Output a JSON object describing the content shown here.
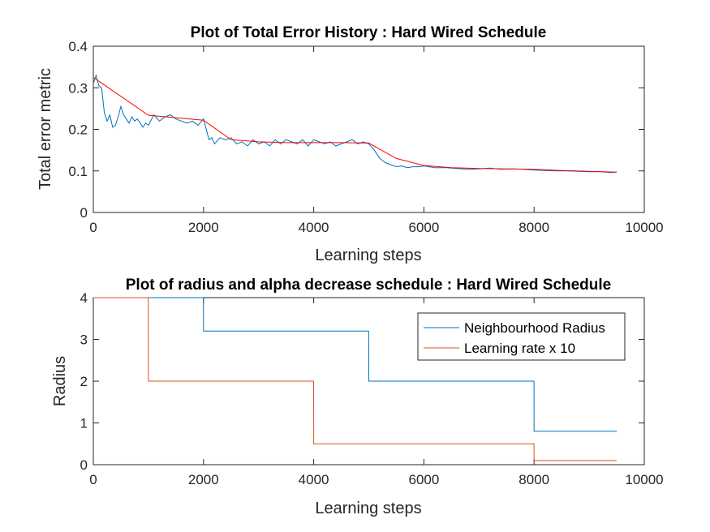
{
  "chart_data": [
    {
      "type": "line",
      "title": "Plot of Total Error History : Hard Wired Schedule",
      "xlabel": "Learning steps",
      "ylabel": "Total error metric",
      "xlim": [
        0,
        10000
      ],
      "ylim": [
        0,
        0.4
      ],
      "xticks": [
        "0",
        "2000",
        "4000",
        "6000",
        "8000",
        "10000"
      ],
      "yticks": [
        "0",
        "0.1",
        "0.2",
        "0.3",
        "0.4"
      ],
      "grid": false,
      "series": [
        {
          "color": "#0072BD",
          "x": [
            0,
            50,
            100,
            150,
            200,
            250,
            300,
            350,
            400,
            450,
            500,
            550,
            600,
            650,
            700,
            750,
            800,
            850,
            900,
            950,
            1000,
            1100,
            1200,
            1300,
            1400,
            1500,
            1600,
            1700,
            1800,
            1900,
            2000,
            2050,
            2100,
            2150,
            2200,
            2300,
            2400,
            2500,
            2600,
            2700,
            2800,
            2900,
            3000,
            3100,
            3200,
            3300,
            3400,
            3500,
            3600,
            3700,
            3800,
            3900,
            4000,
            4100,
            4200,
            4300,
            4400,
            4500,
            4600,
            4700,
            4800,
            4900,
            5000,
            5100,
            5200,
            5300,
            5400,
            5500,
            5600,
            5700,
            5800,
            5900,
            6000,
            6200,
            6400,
            6600,
            6800,
            7000,
            7200,
            7400,
            7600,
            7800,
            8000,
            8200,
            8400,
            8600,
            8800,
            9000,
            9200,
            9400,
            9500
          ],
          "y": [
            0.31,
            0.33,
            0.305,
            0.3,
            0.24,
            0.22,
            0.235,
            0.205,
            0.21,
            0.23,
            0.255,
            0.235,
            0.225,
            0.215,
            0.23,
            0.22,
            0.225,
            0.215,
            0.205,
            0.215,
            0.21,
            0.235,
            0.22,
            0.23,
            0.235,
            0.225,
            0.22,
            0.215,
            0.22,
            0.21,
            0.225,
            0.2,
            0.175,
            0.18,
            0.165,
            0.18,
            0.175,
            0.18,
            0.165,
            0.17,
            0.16,
            0.175,
            0.165,
            0.17,
            0.16,
            0.175,
            0.165,
            0.175,
            0.17,
            0.165,
            0.175,
            0.16,
            0.175,
            0.17,
            0.165,
            0.17,
            0.16,
            0.165,
            0.17,
            0.175,
            0.165,
            0.17,
            0.165,
            0.15,
            0.13,
            0.12,
            0.115,
            0.11,
            0.112,
            0.108,
            0.11,
            0.11,
            0.112,
            0.108,
            0.108,
            0.106,
            0.104,
            0.105,
            0.107,
            0.104,
            0.105,
            0.104,
            0.102,
            0.101,
            0.1,
            0.1,
            0.099,
            0.098,
            0.098,
            0.096,
            0.097
          ]
        },
        {
          "color": "#FF0000",
          "x": [
            0,
            1000,
            2000,
            2500,
            3000,
            3500,
            4000,
            4500,
            5000,
            5500,
            6000,
            6500,
            7000,
            7500,
            8000,
            8500,
            9000,
            9500
          ],
          "y": [
            0.325,
            0.234,
            0.222,
            0.175,
            0.17,
            0.168,
            0.168,
            0.168,
            0.167,
            0.13,
            0.113,
            0.108,
            0.106,
            0.105,
            0.104,
            0.101,
            0.099,
            0.097
          ]
        }
      ]
    },
    {
      "type": "line",
      "title": "Plot of radius and alpha decrease schedule : Hard Wired Schedule",
      "xlabel": "Learning steps",
      "ylabel": "Radius",
      "xlim": [
        0,
        10000
      ],
      "ylim": [
        0,
        4
      ],
      "xticks": [
        "0",
        "2000",
        "4000",
        "6000",
        "8000",
        "10000"
      ],
      "yticks": [
        "0",
        "1",
        "2",
        "3",
        "4"
      ],
      "grid": false,
      "legend_position": "top-right",
      "series": [
        {
          "name": "Neighbourhood Radius",
          "color": "#0072BD",
          "x": [
            0,
            1999,
            2000,
            4999,
            5000,
            7999,
            8000,
            9500
          ],
          "y": [
            4,
            4,
            3.2,
            3.2,
            2,
            2,
            0.8,
            0.8
          ]
        },
        {
          "name": "Learning rate x 10",
          "color": "#D95319",
          "x": [
            0,
            999,
            1000,
            3999,
            4000,
            7999,
            8000,
            9500
          ],
          "y": [
            4,
            4,
            2,
            2,
            0.5,
            0.5,
            0.1,
            0.1
          ]
        }
      ]
    }
  ]
}
